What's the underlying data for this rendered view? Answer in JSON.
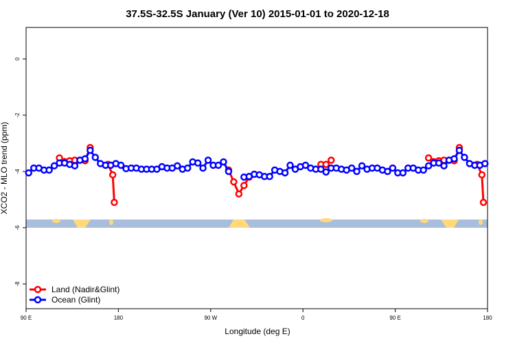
{
  "chart_data": {
    "type": "line",
    "title": "37.5S-32.5S January (Ver 10)   2015-01-01 to 2020-12-18",
    "xlabel": "Longitude (deg E)",
    "ylabel": "XCO2 - MLO trend (ppm)",
    "xlim": [
      90,
      540
    ],
    "ylim": [
      -8.88,
      1.12
    ],
    "xticks": [
      {
        "value": 90,
        "label": "90 E"
      },
      180,
      {
        "value": 270,
        "label": "90 W"
      },
      {
        "value": 360,
        "label": "0"
      },
      {
        "value": 450,
        "label": "90 E"
      },
      {
        "value": 540,
        "label": "180"
      }
    ],
    "yticks": [
      0,
      -2,
      -4,
      -6,
      -8
    ],
    "grid": false,
    "legend": "bottomleft",
    "series": [
      {
        "name": "Land (Nadir&Glint)",
        "color": "#ff0000",
        "x": [
          122.5,
          127.5,
          132.5,
          137.5,
          142.5,
          147.5,
          152.5,
          162.5,
          170,
          174.5,
          176,
          282.5,
          287.5,
          292.5,
          297.5,
          302.5,
          307.5,
          372.5,
          377.5,
          382.5,
          387.5,
          392.5,
          482.5,
          487.5,
          492.5,
          497.5,
          502.5,
          507.5,
          512.5,
          522.5,
          530,
          534.5,
          536
        ],
        "values": [
          -3.52,
          -3.65,
          -3.62,
          -3.6,
          -3.6,
          -3.62,
          -3.15,
          null,
          -3.75,
          -4.12,
          -5.1,
          null,
          -3.95,
          -4.37,
          -4.8,
          -4.5,
          -4.2,
          null,
          -3.75,
          -3.75,
          -3.6,
          null,
          -3.52,
          -3.65,
          -3.62,
          -3.6,
          -3.6,
          -3.62,
          -3.15,
          null,
          -3.75,
          -4.12,
          -5.1
        ]
      },
      {
        "name": "Ocean (Glint)",
        "color": "#0000ff",
        "x": [
          92.5,
          97.5,
          102.5,
          107.5,
          112.5,
          117.5,
          122.5,
          127.5,
          132.5,
          137.5,
          142.5,
          147.5,
          152.5,
          157.5,
          162.5,
          167.5,
          172.5,
          177.5,
          182.5,
          187.5,
          192.5,
          197.5,
          202.5,
          207.5,
          212.5,
          217.5,
          222.5,
          227.5,
          232.5,
          237.5,
          242.5,
          247.5,
          252.5,
          257.5,
          262.5,
          267.5,
          272.5,
          277.5,
          282.5,
          287.5,
          292.5,
          297.5,
          302.5,
          307.5,
          312.5,
          317.5,
          322.5,
          327.5,
          332.5,
          337.5,
          342.5,
          347.5,
          352.5,
          357.5,
          362.5,
          367.5,
          372.5,
          377.5,
          382.5,
          387.5,
          392.5,
          397.5,
          402.5,
          407.5,
          412.5,
          417.5,
          422.5,
          427.5,
          432.5,
          437.5,
          442.5,
          447.5,
          452.5,
          457.5,
          462.5,
          467.5,
          472.5,
          477.5,
          482.5,
          487.5,
          492.5,
          497.5,
          502.5,
          507.5,
          512.5,
          517.5,
          522.5,
          527.5,
          532.5,
          537.5
        ],
        "values": [
          -4.05,
          -3.88,
          -3.88,
          -3.95,
          -3.95,
          -3.8,
          -3.7,
          -3.7,
          -3.75,
          -3.8,
          -3.6,
          -3.55,
          -3.25,
          -3.5,
          -3.72,
          -3.78,
          -3.78,
          -3.72,
          -3.78,
          -3.9,
          -3.88,
          -3.88,
          -3.92,
          -3.92,
          -3.92,
          -3.92,
          -3.83,
          -3.88,
          -3.88,
          -3.8,
          -3.92,
          -3.88,
          -3.66,
          -3.7,
          -3.88,
          -3.6,
          -3.78,
          -3.78,
          -3.66,
          -4.0,
          null,
          null,
          -4.2,
          -4.18,
          -4.1,
          -4.12,
          -4.18,
          -4.18,
          -3.95,
          -4.0,
          -4.05,
          -3.78,
          -3.92,
          -3.83,
          -3.78,
          -3.88,
          -3.92,
          -3.92,
          -4.02,
          -3.88,
          -3.88,
          -3.92,
          -3.95,
          -3.88,
          -4.0,
          -3.8,
          -3.92,
          -3.88,
          -3.88,
          -3.95,
          -4.0,
          -3.88,
          -4.05,
          -4.05,
          -3.88,
          -3.88,
          -3.95,
          -3.95,
          -3.8,
          -3.7,
          -3.7,
          -3.8,
          -3.6,
          -3.55,
          -3.25,
          -3.5,
          -3.72,
          -3.78,
          -3.78,
          -3.72
        ]
      }
    ]
  }
}
